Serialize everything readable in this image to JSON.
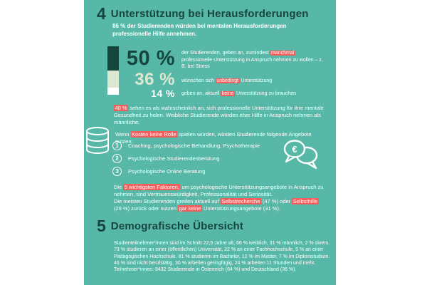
{
  "colors": {
    "panel_teal": "#57b8a8",
    "dark_teal": "#16443e",
    "pale_sage": "#dce8d2",
    "highlight_red": "#f15e5e",
    "text_white": "#ffffff"
  },
  "section4": {
    "number": "4",
    "title": "Unterstützung bei Herausforderungen",
    "subtitle": "86 % der Studierenden würden bei mentalen Herausforderungen professionelle Hilfe annehmen.",
    "stats": [
      {
        "value": "50 %",
        "desc": [
          {
            "t": "der Studierenden, geben an, zumindest "
          },
          {
            "t": "manchmal",
            "hl": true
          },
          {
            "t": " professionelle Unterstützung in Anspruch nehmen zu wollen – z. B. bei Stress"
          }
        ]
      },
      {
        "value": "36 %",
        "desc": [
          {
            "t": "wünschen sich "
          },
          {
            "t": "unbedingt",
            "hl": true
          },
          {
            "t": " Unterstützung"
          }
        ]
      },
      {
        "value": "14 %",
        "desc": [
          {
            "t": "geben an, aktuell "
          },
          {
            "t": "keine",
            "hl": true
          },
          {
            "t": " Unterstützung zu brauchen"
          }
        ]
      }
    ],
    "para_probability": [
      {
        "t": "40 %",
        "hl": true
      },
      {
        "t": " sehen es als wahrscheinlich an, sich professionelle Unterstützung für ihre mentale Gesundheit zu holen. Weibliche Studierende würden eher Hilfe in Anspruch nehmen als männliche."
      }
    ],
    "para_costs": [
      {
        "t": "Wenn "
      },
      {
        "t": "Kosten keine Rolle",
        "hl": true
      },
      {
        "t": " spielen würden, würden Studierende folgende Angebote nutzen:"
      }
    ],
    "offers": [
      {
        "num": "1",
        "label": "Coaching, psychologische Behandlung, Psychotherapie"
      },
      {
        "num": "2",
        "label": "Psychologische Studierendenberatung"
      },
      {
        "num": "3",
        "label": "Psychologische Online Beratung"
      }
    ],
    "euro_symbol": "€",
    "para_factors": [
      {
        "t": "Die "
      },
      {
        "t": "5 wichtigsten Faktoren,",
        "hl": true
      },
      {
        "t": " um psychologische Unterstützungsangebote in Anspruch zu nehmen, sind Vertrauenswürdigkeit, Professionalität und Seriosität."
      },
      {
        "br": true
      },
      {
        "t": "Die meisten Studierenden greifen aktuell auf "
      },
      {
        "t": "Selbstrecherche",
        "hl": true
      },
      {
        "t": " (47 %) oder "
      },
      {
        "t": "Selbsthilfe",
        "hl": true
      },
      {
        "t": " (29 %) zurück oder nutzen "
      },
      {
        "t": "gar keine",
        "hl": true
      },
      {
        "t": " Unterstützungsangebote (31 %)."
      }
    ]
  },
  "section5": {
    "number": "5",
    "title": "Demografische Übersicht",
    "paragraph": "Studienteilnehmer*innen sind im Schnitt 22,5 Jahre alt, 66 % weiblich, 31 % männlich, 2 % divers. 73 % studieren an einer (öffentlichen) Universität, 22 % an einer Fachhochschule, 5 % an einer Pädagogischen Hochschule. 81 % studieren im Bachelor, 12 % im Master, 7 % im Diplomstudium. 46 % sind nicht berufstätig, 30 % arbeiten geringfügig, 24 % arbeiten 11 Stunden und mehr. Teilnehmer*innen: 8432 Studierende in Österreich (64 %) und Deutschland (36 %)."
  },
  "chart_data": {
    "type": "bar",
    "stacked": true,
    "orientation": "vertical",
    "title": "Gewünschte professionelle Unterstützung bei mentalen Herausforderungen",
    "categories": [
      "geben an, zumindest manchmal professionelle Unterstützung in Anspruch nehmen zu wollen",
      "wünschen sich unbedingt Unterstützung",
      "geben an, aktuell keine Unterstützung zu brauchen"
    ],
    "categories_short": [
      "manchmal",
      "unbedingt",
      "keine"
    ],
    "values": [
      50,
      36,
      14
    ],
    "unit": "%",
    "colors": [
      "#16443e",
      "#dce8d2",
      "#ffffff"
    ],
    "legend_position": "none",
    "grid": false
  }
}
